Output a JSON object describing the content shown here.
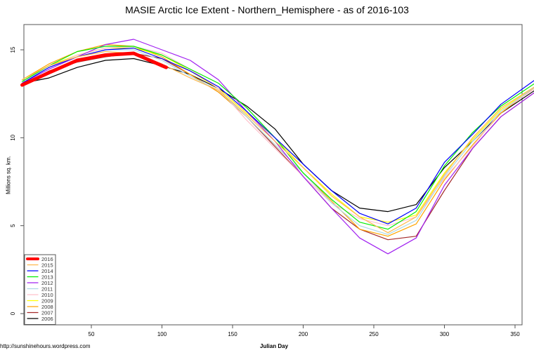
{
  "chart_data": {
    "type": "line",
    "title": "MASIE Arctic Ice Extent - Northern_Hemisphere - as of 2016-103",
    "xlabel": "Julian Day",
    "ylabel": "Millions sq. km.",
    "credit": "http://sunshinehours.wordpress.com",
    "xlim": [
      1,
      366
    ],
    "ylim": [
      0,
      16.4
    ],
    "xticks": [
      50,
      100,
      150,
      200,
      250,
      300,
      350
    ],
    "yticks": [
      0,
      5,
      10,
      15
    ],
    "grid": false,
    "legend_position": "bottom-left",
    "x": [
      1,
      20,
      40,
      60,
      80,
      100,
      120,
      140,
      160,
      180,
      200,
      220,
      240,
      260,
      280,
      300,
      320,
      340,
      366
    ],
    "series": [
      {
        "name": "2016",
        "color": "#FF0000",
        "x": [
          1,
          20,
          40,
          60,
          80,
          100,
          103
        ],
        "values": [
          13.0,
          13.7,
          14.4,
          14.7,
          14.8,
          14.1,
          14.0
        ]
      },
      {
        "name": "2015",
        "color": "#FFB84D",
        "values": [
          13.3,
          14.1,
          14.6,
          14.9,
          14.8,
          14.2,
          13.4,
          12.7,
          11.3,
          9.8,
          8.3,
          6.7,
          5.5,
          4.6,
          5.5,
          7.9,
          10.0,
          11.7,
          13.0
        ]
      },
      {
        "name": "2014",
        "color": "#0000FF",
        "values": [
          13.1,
          14.0,
          14.6,
          15.0,
          15.1,
          14.5,
          13.8,
          12.9,
          11.5,
          10.0,
          8.5,
          7.0,
          5.7,
          5.1,
          6.0,
          8.6,
          10.2,
          11.9,
          13.4
        ]
      },
      {
        "name": "2013",
        "color": "#00EE00",
        "values": [
          13.2,
          14.1,
          14.9,
          15.2,
          15.2,
          14.7,
          13.9,
          13.1,
          11.7,
          10.0,
          8.0,
          6.5,
          5.2,
          4.8,
          5.8,
          8.4,
          10.3,
          11.8,
          13.2
        ]
      },
      {
        "name": "2012",
        "color": "#A020F0",
        "values": [
          13.1,
          13.9,
          14.6,
          15.3,
          15.6,
          15.0,
          14.4,
          13.3,
          11.5,
          9.8,
          7.8,
          6.0,
          4.3,
          3.4,
          4.3,
          7.3,
          9.4,
          11.2,
          12.7
        ]
      },
      {
        "name": "2011",
        "color": "#ADD8E6",
        "values": [
          13.2,
          14.0,
          14.6,
          15.0,
          15.0,
          14.4,
          13.5,
          12.7,
          11.2,
          9.6,
          8.0,
          6.3,
          5.0,
          4.5,
          5.3,
          7.8,
          9.8,
          11.5,
          13.0
        ]
      },
      {
        "name": "2010",
        "color": "#FFC0CB",
        "values": [
          13.2,
          14.0,
          14.7,
          15.1,
          15.2,
          14.8,
          13.9,
          12.8,
          11.0,
          9.4,
          7.8,
          6.3,
          5.4,
          5.0,
          5.5,
          7.7,
          9.5,
          11.5,
          12.9
        ]
      },
      {
        "name": "2009",
        "color": "#FFFF00",
        "values": [
          13.3,
          14.1,
          14.7,
          15.1,
          15.1,
          14.7,
          13.8,
          12.8,
          11.4,
          10.0,
          8.3,
          6.8,
          5.5,
          5.2,
          5.6,
          8.0,
          9.9,
          11.6,
          13.0
        ]
      },
      {
        "name": "2008",
        "color": "#FFA500",
        "values": [
          13.3,
          14.2,
          14.9,
          15.3,
          15.2,
          14.6,
          13.6,
          12.6,
          11.2,
          9.6,
          8.0,
          6.4,
          4.8,
          4.4,
          5.1,
          7.6,
          9.6,
          11.4,
          13.0
        ]
      },
      {
        "name": "2007",
        "color": "#A52A2A",
        "values": [
          13.0,
          13.8,
          14.3,
          14.6,
          14.8,
          14.5,
          13.6,
          12.6,
          11.2,
          9.5,
          7.8,
          6.0,
          4.8,
          4.2,
          4.4,
          7.0,
          9.4,
          11.2,
          12.7
        ]
      },
      {
        "name": "2006",
        "color": "#000000",
        "values": [
          13.1,
          13.4,
          14.0,
          14.4,
          14.5,
          14.1,
          13.6,
          12.8,
          11.8,
          10.5,
          8.5,
          7.0,
          6.0,
          5.8,
          6.2,
          8.3,
          9.8,
          11.4,
          12.8
        ]
      }
    ]
  }
}
